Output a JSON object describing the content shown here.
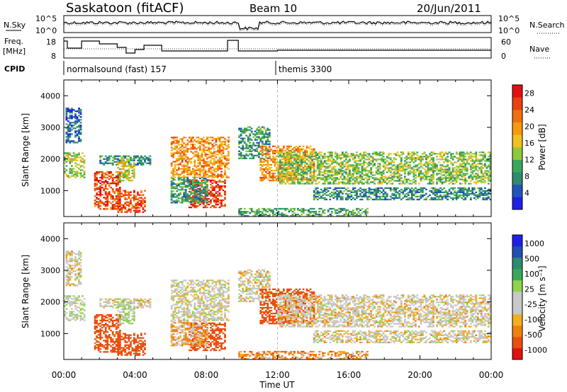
{
  "header": {
    "station": "Saskatoon (fitACF)",
    "beam": "Beam 10",
    "date": "20/Jun/2011"
  },
  "strip_labels": {
    "nsky": "N.Sky",
    "freq_line1": "Freq.",
    "freq_line2": "[MHz]",
    "cpid": "CPID",
    "nsearch": "N.Search",
    "nave": "Nave",
    "nsky_ticks": [
      "10^5",
      "10^0"
    ],
    "nsearch_ticks": [
      "10^5",
      "10^0"
    ],
    "freq_ticks": [
      "18",
      "8"
    ],
    "nave_ticks": [
      "60",
      "0"
    ]
  },
  "cpid_segments": [
    {
      "label": "normalsound (fast) 157",
      "start_hour": 0.0
    },
    {
      "label": "themis 3300",
      "start_hour": 11.9
    }
  ],
  "colors": {
    "power": [
      "#1f1fe6",
      "#1f55b8",
      "#2f8a6f",
      "#3aa85a",
      "#8fc83a",
      "#f0c020",
      "#f59a10",
      "#f07010",
      "#e84010",
      "#e21010"
    ],
    "velocity": [
      "#1f1fe6",
      "#2050b0",
      "#2f8a6f",
      "#3aa85a",
      "#8fd44a",
      "#c8c8c8",
      "#c8c8c8",
      "#f0b020",
      "#f08010",
      "#e85010",
      "#e21010"
    ]
  },
  "chart_data": [
    {
      "type": "heatmap",
      "title": "",
      "xlabel": "Time UT",
      "ylabel": "Slant Range [km]",
      "x_ticks": [
        "00:00",
        "04:00",
        "08:00",
        "12:00",
        "16:00",
        "20:00",
        "00:00"
      ],
      "y_ticks": [
        "1000",
        "2000",
        "3000",
        "4000"
      ],
      "xlim_hours": [
        0,
        24
      ],
      "ylim_km": [
        180,
        4500
      ],
      "colorbar": {
        "label": "Power [dB]",
        "ticks": [
          "4",
          "8",
          "12",
          "16",
          "20",
          "24",
          "28"
        ],
        "range": [
          0,
          30
        ]
      }
    },
    {
      "type": "heatmap",
      "title": "",
      "xlabel": "Time UT",
      "ylabel": "Slant Range [km]",
      "x_ticks": [
        "00:00",
        "04:00",
        "08:00",
        "12:00",
        "16:00",
        "20:00",
        "00:00"
      ],
      "y_ticks": [
        "1000",
        "2000",
        "3000",
        "4000"
      ],
      "xlim_hours": [
        0,
        24
      ],
      "ylim_km": [
        180,
        4500
      ],
      "colorbar": {
        "label": "Velocity [m s⁻¹]",
        "ticks": [
          "1000",
          "500",
          "100",
          "25",
          "-25",
          "-100",
          "-500",
          "-1000"
        ]
      }
    }
  ],
  "echo_regions": [
    {
      "t0": 0.0,
      "t1": 1.1,
      "r0": 1400,
      "r1": 2200,
      "power": 14,
      "velocity": 30
    },
    {
      "t0": 0.1,
      "t1": 0.9,
      "r0": 2500,
      "r1": 3600,
      "power": 6,
      "velocity": 0
    },
    {
      "t0": 1.7,
      "t1": 3.2,
      "r0": 400,
      "r1": 1600,
      "power": 25,
      "velocity": -150
    },
    {
      "t0": 3.0,
      "t1": 4.5,
      "r0": 300,
      "r1": 1000,
      "power": 24,
      "velocity": -200
    },
    {
      "t0": 2.0,
      "t1": 4.8,
      "r0": 1800,
      "r1": 2100,
      "power": 8,
      "velocity": 0
    },
    {
      "t0": 3.0,
      "t1": 4.0,
      "r0": 1300,
      "r1": 2000,
      "power": 16,
      "velocity": 40
    },
    {
      "t0": 6.0,
      "t1": 9.2,
      "r0": 1400,
      "r1": 2700,
      "power": 20,
      "velocity": 10
    },
    {
      "t0": 7.0,
      "t1": 9.0,
      "r0": 450,
      "r1": 1350,
      "power": 26,
      "velocity": -300
    },
    {
      "t0": 5.8,
      "t1": 8.0,
      "r0": 600,
      "r1": 1400,
      "power": 9,
      "velocity": -30
    },
    {
      "t0": 9.8,
      "t1": 11.5,
      "r0": 2000,
      "r1": 3000,
      "power": 9,
      "velocity": 0
    },
    {
      "t0": 11.0,
      "t1": 14.0,
      "r0": 1300,
      "r1": 2400,
      "power": 20,
      "velocity": -400
    },
    {
      "t0": 12.0,
      "t1": 24.0,
      "r0": 1200,
      "r1": 2200,
      "power": 13,
      "velocity": 0
    },
    {
      "t0": 14.0,
      "t1": 24.0,
      "r0": 700,
      "r1": 1100,
      "power": 8,
      "velocity": 0
    },
    {
      "t0": 9.8,
      "t1": 17.0,
      "r0": 180,
      "r1": 450,
      "power": 10,
      "velocity": -60
    }
  ],
  "data_gaps_hours": [
    [
      1.1,
      1.7
    ],
    [
      4.8,
      5.2
    ],
    [
      5.5,
      5.9
    ],
    [
      9.2,
      9.8
    ]
  ]
}
